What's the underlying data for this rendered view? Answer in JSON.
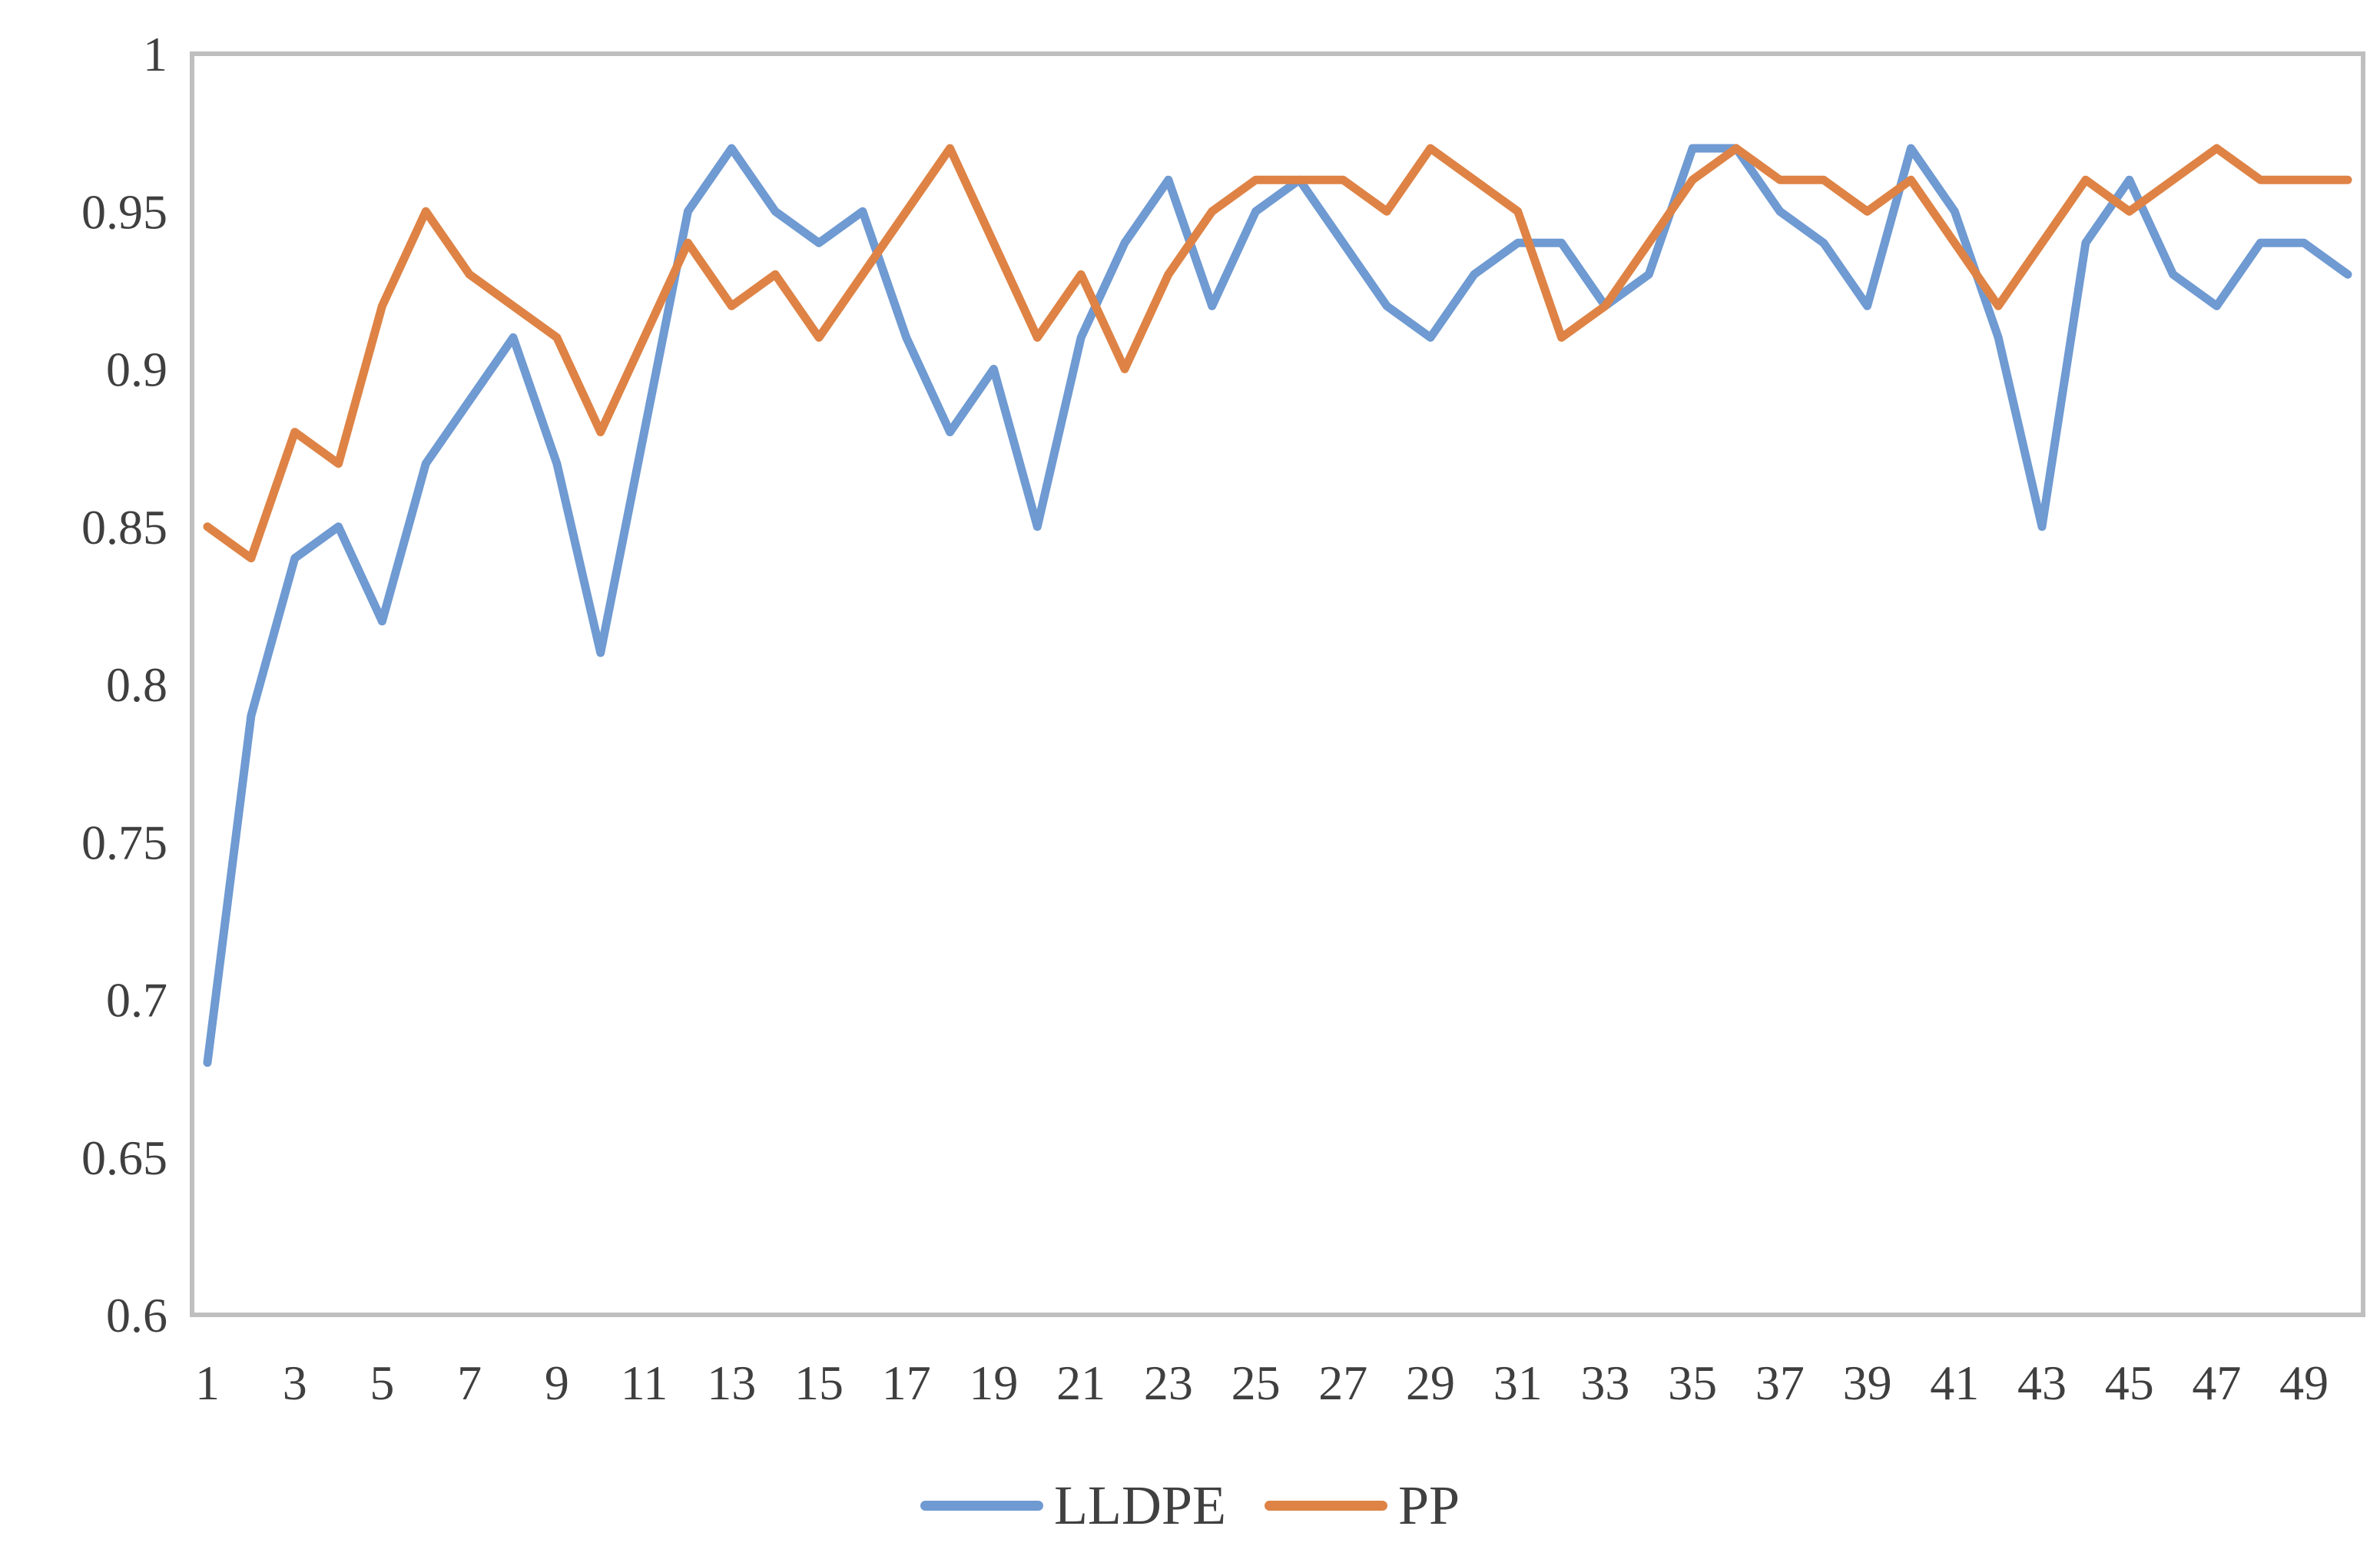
{
  "chart_data": {
    "type": "line",
    "title": "",
    "xlabel": "",
    "ylabel": "",
    "x": [
      1,
      2,
      3,
      4,
      5,
      6,
      7,
      8,
      9,
      10,
      11,
      12,
      13,
      14,
      15,
      16,
      17,
      18,
      19,
      20,
      21,
      22,
      23,
      24,
      25,
      26,
      27,
      28,
      29,
      30,
      31,
      32,
      33,
      34,
      35,
      36,
      37,
      38,
      39,
      40,
      41,
      42,
      43,
      44,
      45,
      46,
      47,
      48,
      49,
      50
    ],
    "series": [
      {
        "name": "LLDPE",
        "color": "#6F9AD2",
        "values": [
          0.68,
          0.79,
          0.84,
          0.85,
          0.82,
          0.87,
          0.89,
          0.91,
          0.87,
          0.81,
          0.88,
          0.95,
          0.97,
          0.95,
          0.94,
          0.95,
          0.91,
          0.88,
          0.9,
          0.85,
          0.91,
          0.94,
          0.96,
          0.92,
          0.95,
          0.96,
          0.94,
          0.92,
          0.91,
          0.93,
          0.94,
          0.94,
          0.92,
          0.93,
          0.97,
          0.97,
          0.95,
          0.94,
          0.92,
          0.97,
          0.95,
          0.91,
          0.85,
          0.94,
          0.96,
          0.93,
          0.92,
          0.94,
          0.94,
          0.93
        ]
      },
      {
        "name": "PP",
        "color": "#DE8345",
        "values": [
          0.85,
          0.84,
          0.88,
          0.87,
          0.92,
          0.95,
          0.93,
          0.92,
          0.91,
          0.88,
          0.91,
          0.94,
          0.92,
          0.93,
          0.91,
          0.93,
          0.95,
          0.97,
          0.94,
          0.91,
          0.93,
          0.9,
          0.93,
          0.95,
          0.96,
          0.96,
          0.96,
          0.95,
          0.97,
          0.96,
          0.95,
          0.91,
          0.92,
          0.94,
          0.96,
          0.97,
          0.96,
          0.96,
          0.95,
          0.96,
          0.94,
          0.92,
          0.94,
          0.96,
          0.95,
          0.96,
          0.97,
          0.96,
          0.96,
          0.96
        ]
      }
    ],
    "ylim": [
      0.6,
      1.0
    ],
    "yticks": [
      "1",
      "0.95",
      "0.9",
      "0.85",
      "0.8",
      "0.75",
      "0.7",
      "0.65",
      "0.6"
    ],
    "ytick_values": [
      1.0,
      0.95,
      0.9,
      0.85,
      0.8,
      0.75,
      0.7,
      0.65,
      0.6
    ],
    "xtick_labels": [
      "1",
      "3",
      "5",
      "7",
      "9",
      "11",
      "13",
      "15",
      "17",
      "19",
      "21",
      "23",
      "25",
      "27",
      "29",
      "31",
      "33",
      "35",
      "37",
      "39",
      "41",
      "43",
      "45",
      "47",
      "49"
    ],
    "xtick_indices": [
      1,
      3,
      5,
      7,
      9,
      11,
      13,
      15,
      17,
      19,
      21,
      23,
      25,
      27,
      29,
      31,
      33,
      35,
      37,
      39,
      41,
      43,
      45,
      47,
      49
    ],
    "grid": false,
    "legend_position": "bottom",
    "plot_border_color": "#BFBFBF",
    "tick_text_color": "#3f3f3f",
    "line_width": 11
  },
  "legend": {
    "items": [
      {
        "label": "LLDPE",
        "color": "#6F9AD2"
      },
      {
        "label": "PP",
        "color": "#DE8345"
      }
    ]
  }
}
